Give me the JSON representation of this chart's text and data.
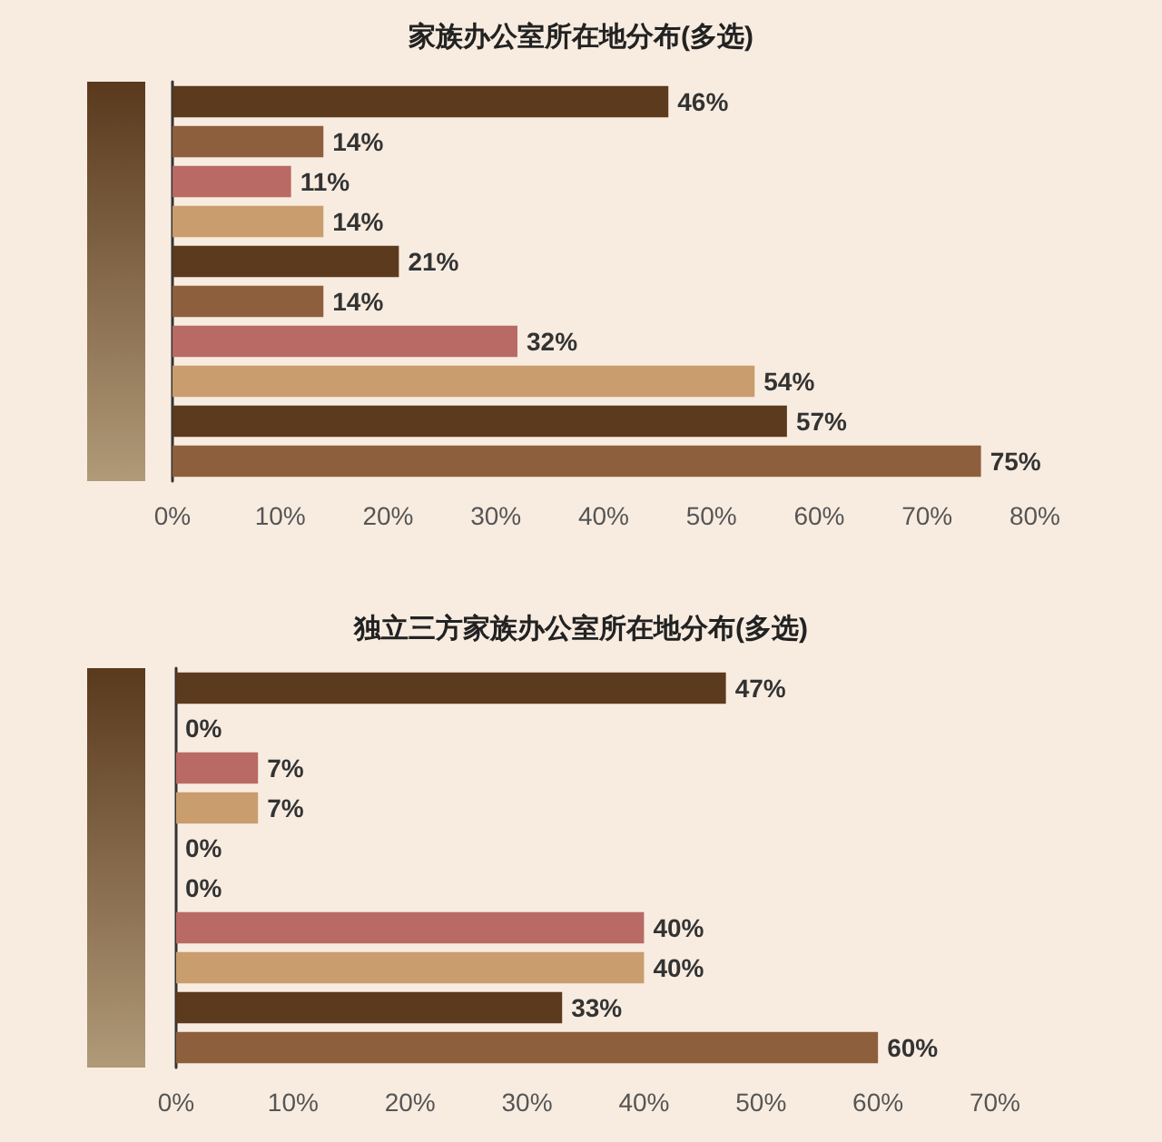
{
  "chart_data": [
    {
      "type": "bar",
      "title": "家族办公室所在地分布(多选)",
      "orientation": "horizontal",
      "categories": [
        null,
        null,
        null,
        null,
        null,
        null,
        null,
        null,
        null,
        null
      ],
      "values": [
        46,
        14,
        11,
        14,
        21,
        14,
        32,
        54,
        57,
        75
      ],
      "colors": [
        "#5c3a1e",
        "#8e5f3d",
        "#b96a64",
        "#c99d6d",
        "#5c3a1e",
        "#8e5f3d",
        "#b96a64",
        "#c99d6d",
        "#5c3a1e",
        "#8e5f3d"
      ],
      "value_labels": [
        "46%",
        "14%",
        "11%",
        "14%",
        "21%",
        "14%",
        "32%",
        "54%",
        "57%",
        "75%"
      ],
      "xlim": [
        0,
        80
      ],
      "xticks": [
        {
          "value": 0,
          "label": "0%"
        },
        {
          "value": 10,
          "label": "10%"
        },
        {
          "value": 20,
          "label": "20%"
        },
        {
          "value": 30,
          "label": "30%"
        },
        {
          "value": 40,
          "label": "40%"
        },
        {
          "value": 50,
          "label": "50%"
        },
        {
          "value": 60,
          "label": "60%"
        },
        {
          "value": 70,
          "label": "70%"
        },
        {
          "value": 80,
          "label": "80%"
        }
      ],
      "grid": false
    },
    {
      "type": "bar",
      "title": "独立三方家族办公室所在地分布(多选)",
      "orientation": "horizontal",
      "categories": [
        null,
        null,
        null,
        null,
        null,
        null,
        null,
        null,
        null,
        null
      ],
      "values": [
        47,
        0,
        7,
        7,
        0,
        0,
        40,
        40,
        33,
        60
      ],
      "colors": [
        "#5c3a1e",
        "#8e5f3d",
        "#b96a64",
        "#c99d6d",
        "#5c3a1e",
        "#8e5f3d",
        "#b96a64",
        "#c99d6d",
        "#5c3a1e",
        "#8e5f3d"
      ],
      "value_labels": [
        "47%",
        "0%",
        "7%",
        "7%",
        "0%",
        "0%",
        "40%",
        "40%",
        "33%",
        "60%"
      ],
      "xlim": [
        0,
        70
      ],
      "xticks": [
        {
          "value": 0,
          "label": "0%"
        },
        {
          "value": 10,
          "label": "10%"
        },
        {
          "value": 20,
          "label": "20%"
        },
        {
          "value": 30,
          "label": "30%"
        },
        {
          "value": 40,
          "label": "40%"
        },
        {
          "value": 50,
          "label": "50%"
        },
        {
          "value": 60,
          "label": "60%"
        },
        {
          "value": 70,
          "label": "70%"
        }
      ],
      "grid": false
    }
  ]
}
